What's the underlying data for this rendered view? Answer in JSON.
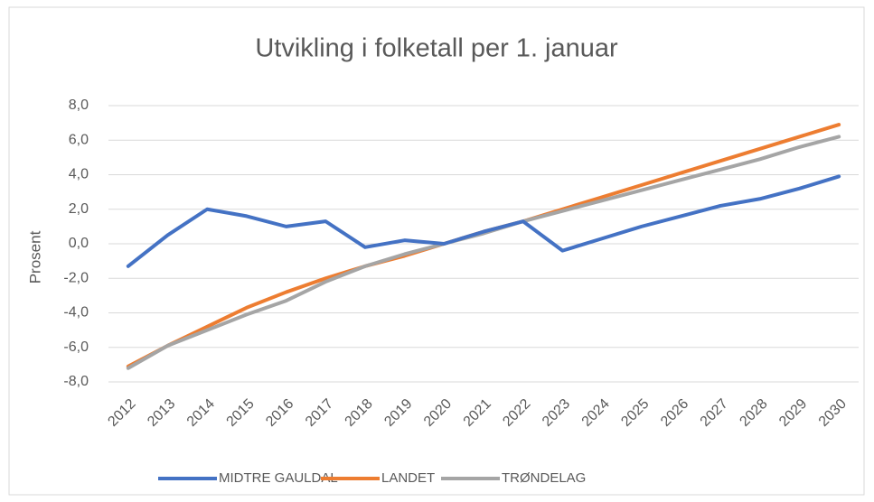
{
  "chart_data": {
    "type": "line",
    "title": "Utvikling i folketall per 1. januar",
    "y_label": "Prosent",
    "categories": [
      "2012",
      "2013",
      "2014",
      "2015",
      "2016",
      "2017",
      "2018",
      "2019",
      "2020",
      "2021",
      "2022",
      "2023",
      "2024",
      "2025",
      "2026",
      "2027",
      "2028",
      "2029",
      "2030"
    ],
    "series": [
      {
        "name": "MIDTRE GAULDAL",
        "color": "#4472c4",
        "values": [
          -1.3,
          0.5,
          2.0,
          1.6,
          1.0,
          1.3,
          -0.2,
          0.2,
          0.0,
          0.7,
          1.3,
          -0.4,
          0.3,
          1.0,
          1.6,
          2.2,
          2.6,
          3.2,
          3.9
        ]
      },
      {
        "name": "LANDET",
        "color": "#ed7d31",
        "values": [
          -7.1,
          -5.9,
          -4.8,
          -3.7,
          -2.8,
          -2.0,
          -1.3,
          -0.7,
          0.0,
          0.7,
          1.3,
          2.0,
          2.7,
          3.4,
          4.1,
          4.8,
          5.5,
          6.2,
          6.9
        ]
      },
      {
        "name": "TRØNDELAG",
        "color": "#a5a5a5",
        "values": [
          -7.2,
          -5.9,
          -5.0,
          -4.1,
          -3.3,
          -2.2,
          -1.3,
          -0.6,
          0.0,
          0.6,
          1.3,
          1.9,
          2.5,
          3.1,
          3.7,
          4.3,
          4.9,
          5.6,
          6.2
        ]
      }
    ],
    "ylim": [
      -8,
      8
    ],
    "yticks": [
      {
        "value": -8,
        "label": "-8,0"
      },
      {
        "value": -6,
        "label": "-6,0"
      },
      {
        "value": -4,
        "label": "-4,0"
      },
      {
        "value": -2,
        "label": "-2,0"
      },
      {
        "value": 0,
        "label": "0,0"
      },
      {
        "value": 2,
        "label": "2,0"
      },
      {
        "value": 4,
        "label": "4,0"
      },
      {
        "value": 6,
        "label": "6,0"
      },
      {
        "value": 8,
        "label": "8,0"
      }
    ],
    "grid": true,
    "legend": "bottom"
  }
}
